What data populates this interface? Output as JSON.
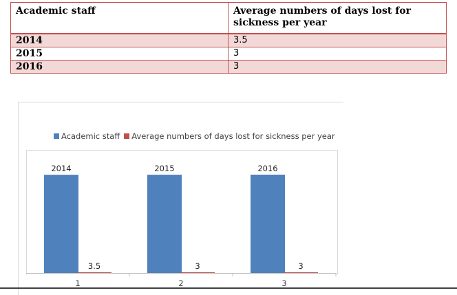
{
  "table": {
    "headers": [
      "Academic staff",
      "Average numbers of days lost for sickness per year"
    ],
    "rows": [
      {
        "year": "2014",
        "value": "3.5"
      },
      {
        "year": "2015",
        "value": "3"
      },
      {
        "year": "2016",
        "value": "3"
      }
    ]
  },
  "colors": {
    "series1": "#4f81bd",
    "series2": "#c0504d",
    "table_border": "#c0504d",
    "row_fill": "#f2d9d8"
  },
  "chart_data": {
    "type": "bar",
    "categories": [
      "1",
      "2",
      "3"
    ],
    "series": [
      {
        "name": "Academic staff",
        "values": [
          2014,
          2015,
          2016
        ],
        "color": "#4f81bd"
      },
      {
        "name": "Average numbers of days lost for sickness per year",
        "values": [
          3.5,
          3,
          3
        ],
        "color": "#c0504d"
      }
    ],
    "legend_position": "top",
    "grid": false
  }
}
